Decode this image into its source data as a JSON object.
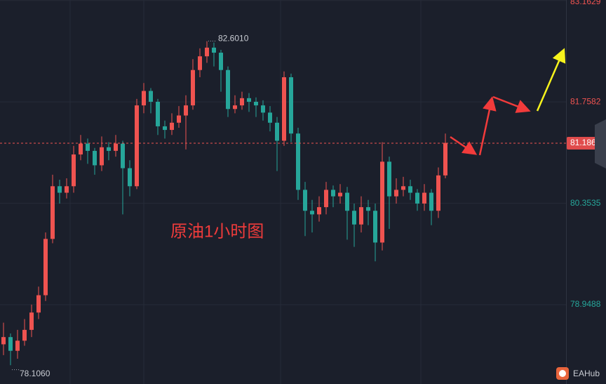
{
  "chart_data": {
    "type": "candlestick",
    "title": "原油1小时图",
    "watermark": "EAHub",
    "up_color": "#ef5350",
    "down_color": "#26a69a",
    "ylim": [
      77.85,
      83.17
    ],
    "yticks": [
      78.9488,
      80.3535,
      81.7582,
      83.1629
    ],
    "grid": true,
    "last_price": {
      "value": 81.186,
      "label": "81.1860"
    },
    "high_label": {
      "value": 82.601,
      "label": "82.6010"
    },
    "low_label": {
      "value": 78.106,
      "label": "78.1060"
    },
    "open": [
      78.4,
      78.5,
      78.31,
      78.45,
      78.6,
      78.84,
      79.08,
      79.86,
      80.59,
      80.5,
      80.59,
      81.03,
      81.18,
      81.08,
      80.88,
      81.13,
      81.08,
      81.18,
      80.84,
      80.59,
      81.71,
      81.91,
      81.76,
      81.42,
      81.37,
      81.47,
      81.57,
      81.71,
      82.2,
      82.39,
      82.51,
      82.44,
      82.2,
      81.66,
      81.71,
      81.81,
      81.76,
      81.71,
      81.61,
      81.47,
      81.22,
      82.1,
      81.32,
      80.54,
      80.25,
      80.2,
      80.3,
      80.54,
      80.45,
      80.5,
      80.25,
      80.06,
      80.3,
      80.25,
      79.81,
      80.93,
      80.45,
      80.54,
      80.59,
      80.5,
      80.35,
      80.5,
      80.25,
      80.74
    ],
    "high": [
      78.7,
      78.55,
      78.6,
      78.75,
      78.95,
      79.2,
      79.95,
      80.75,
      80.68,
      80.7,
      81.15,
      81.3,
      81.25,
      81.12,
      81.28,
      81.2,
      81.3,
      81.22,
      80.95,
      81.8,
      82.02,
      81.95,
      81.8,
      81.5,
      81.6,
      81.7,
      81.85,
      82.35,
      82.5,
      82.6,
      82.58,
      82.48,
      82.25,
      81.85,
      81.9,
      81.88,
      81.82,
      81.78,
      81.7,
      81.55,
      82.18,
      82.15,
      81.4,
      80.65,
      80.4,
      80.45,
      80.65,
      80.6,
      80.62,
      80.58,
      80.35,
      80.45,
      80.4,
      80.35,
      81.2,
      81.0,
      80.7,
      80.72,
      80.68,
      80.55,
      80.62,
      80.55,
      80.85,
      81.32
    ],
    "low": [
      78.25,
      78.11,
      78.2,
      78.38,
      78.5,
      78.75,
      79.0,
      79.8,
      80.35,
      80.42,
      80.5,
      80.95,
      80.9,
      80.75,
      80.8,
      80.95,
      81.0,
      80.2,
      80.45,
      80.55,
      81.6,
      81.6,
      81.3,
      81.25,
      81.3,
      81.4,
      81.1,
      81.65,
      82.1,
      82.3,
      82.25,
      81.9,
      81.55,
      81.6,
      81.65,
      81.62,
      81.55,
      81.5,
      81.35,
      80.8,
      81.15,
      81.2,
      80.4,
      79.9,
      79.95,
      80.1,
      80.2,
      80.3,
      80.35,
      79.85,
      79.75,
      79.95,
      80.05,
      79.55,
      79.7,
      80.0,
      80.35,
      80.45,
      80.4,
      80.25,
      80.25,
      80.05,
      80.15,
      80.7
    ],
    "close": [
      78.5,
      78.31,
      78.45,
      78.6,
      78.84,
      79.08,
      79.86,
      80.59,
      80.5,
      80.59,
      81.03,
      81.18,
      81.08,
      80.88,
      81.13,
      81.08,
      81.18,
      80.84,
      80.59,
      81.71,
      81.91,
      81.76,
      81.42,
      81.37,
      81.47,
      81.57,
      81.71,
      82.2,
      82.39,
      82.51,
      82.44,
      82.2,
      81.66,
      81.71,
      81.81,
      81.76,
      81.71,
      81.61,
      81.47,
      81.22,
      82.1,
      81.32,
      80.54,
      80.25,
      80.2,
      80.3,
      80.54,
      80.45,
      80.5,
      80.25,
      80.06,
      80.3,
      80.25,
      79.81,
      80.93,
      80.45,
      80.54,
      80.59,
      80.5,
      80.35,
      80.5,
      80.25,
      80.74,
      81.19
    ]
  }
}
